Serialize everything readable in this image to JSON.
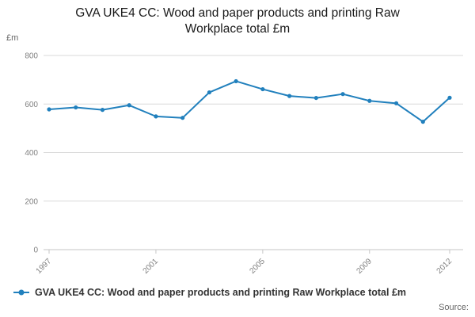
{
  "header": {
    "title": "GVA UKE4 CC: Wood and paper products and printing Raw Workplace total £m"
  },
  "legend": {
    "label": "GVA UKE4 CC: Wood and paper products and printing Raw Workplace total £m"
  },
  "footer": {
    "source_label": "Source:"
  },
  "colors": {
    "line": "#2180bd",
    "grid": "#d9d9d9",
    "axis": "#c6c6c6",
    "tick_text": "#808080",
    "title_text": "#1a1a1a",
    "legend_text": "#333333"
  },
  "chart_data": {
    "type": "line",
    "title": "GVA UKE4 CC: Wood and paper products and printing Raw Workplace total £m",
    "xlabel": "",
    "ylabel": "£m",
    "x": [
      1997,
      1998,
      1999,
      2000,
      2001,
      2002,
      2003,
      2004,
      2005,
      2006,
      2007,
      2008,
      2009,
      2010,
      2011,
      2012
    ],
    "series": [
      {
        "name": "GVA UKE4 CC: Wood and paper products and printing Raw Workplace total £m",
        "values": [
          578,
          586,
          576,
          595,
          549,
          543,
          648,
          694,
          661,
          633,
          625,
          641,
          613,
          603,
          527,
          626
        ]
      }
    ],
    "ylim": [
      0,
      800
    ],
    "yticks": [
      0,
      200,
      400,
      600,
      800
    ],
    "xticks": [
      1997,
      2001,
      2005,
      2009,
      2012
    ],
    "grid": true,
    "marker": "circle",
    "legend_position": "bottom"
  }
}
